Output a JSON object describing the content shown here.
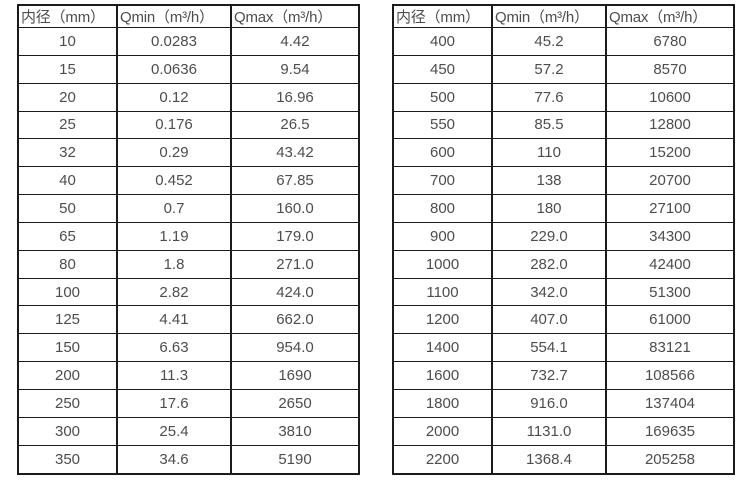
{
  "colors": {
    "background": "#ffffff",
    "border": "#1b1b1b",
    "text": "#4d4d4d"
  },
  "tables": [
    {
      "name": "spec-table-left",
      "headers": [
        "内径（mm）",
        "Qmin（m³/h）",
        "Qmax（m³/h）"
      ],
      "rows": [
        [
          "10",
          "0.0283",
          "4.42"
        ],
        [
          "15",
          "0.0636",
          "9.54"
        ],
        [
          "20",
          "0.12",
          "16.96"
        ],
        [
          "25",
          "0.176",
          "26.5"
        ],
        [
          "32",
          "0.29",
          "43.42"
        ],
        [
          "40",
          "0.452",
          "67.85"
        ],
        [
          "50",
          "0.7",
          "160.0"
        ],
        [
          "65",
          "1.19",
          "179.0"
        ],
        [
          "80",
          "1.8",
          "271.0"
        ],
        [
          "100",
          "2.82",
          "424.0"
        ],
        [
          "125",
          "4.41",
          "662.0"
        ],
        [
          "150",
          "6.63",
          "954.0"
        ],
        [
          "200",
          "11.3",
          "1690"
        ],
        [
          "250",
          "17.6",
          "2650"
        ],
        [
          "300",
          "25.4",
          "3810"
        ],
        [
          "350",
          "34.6",
          "5190"
        ]
      ]
    },
    {
      "name": "spec-table-right",
      "headers": [
        "内径（mm）",
        "Qmin（m³/h）",
        "Qmax（m³/h）"
      ],
      "rows": [
        [
          "400",
          "45.2",
          "6780"
        ],
        [
          "450",
          "57.2",
          "8570"
        ],
        [
          "500",
          "77.6",
          "10600"
        ],
        [
          "550",
          "85.5",
          "12800"
        ],
        [
          "600",
          "110",
          "15200"
        ],
        [
          "700",
          "138",
          "20700"
        ],
        [
          "800",
          "180",
          "27100"
        ],
        [
          "900",
          "229.0",
          "34300"
        ],
        [
          "1000",
          "282.0",
          "42400"
        ],
        [
          "1100",
          "342.0",
          "51300"
        ],
        [
          "1200",
          "407.0",
          "61000"
        ],
        [
          "1400",
          "554.1",
          "83121"
        ],
        [
          "1600",
          "732.7",
          "108566"
        ],
        [
          "1800",
          "916.0",
          "137404"
        ],
        [
          "2000",
          "1131.0",
          "169635"
        ],
        [
          "2200",
          "1368.4",
          "205258"
        ]
      ]
    }
  ]
}
